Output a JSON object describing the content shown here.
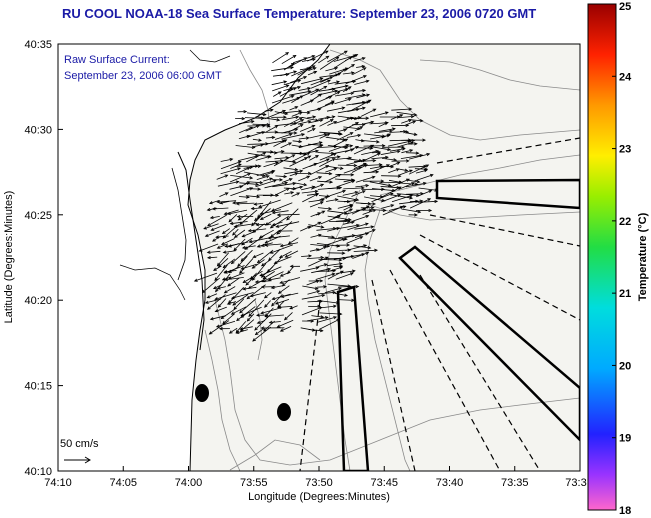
{
  "title": "RU COOL  NOAA-18  Sea Surface Temperature:  September 23, 2006 0720 GMT",
  "annotation": {
    "line1": "Raw Surface Current:",
    "line2": "September 23, 2006 06:00 GMT"
  },
  "scale_label": "50 cm/s",
  "axes": {
    "xlabel": "Longitude (Degrees:Minutes)",
    "ylabel": "Latitude (Degrees:Minutes)",
    "xticks": [
      "74:10",
      "74:05",
      "74:00",
      "73:55",
      "73:50",
      "73:45",
      "73:40",
      "73:35",
      "73:3"
    ],
    "yticks": [
      "40:35",
      "40:30",
      "40:25",
      "40:20",
      "40:15",
      "40:10"
    ]
  },
  "colorbar": {
    "label": "Temperature (°C)",
    "min": 18,
    "max": 25,
    "ticks": [
      "25",
      "24",
      "23",
      "22",
      "21",
      "20",
      "19",
      "18"
    ]
  },
  "colors": {
    "title": "#1a1aa6",
    "land": "#ffffff",
    "sea": "#f4f4f0",
    "contour": "#8a8a8a",
    "arrow": "#000000"
  }
}
